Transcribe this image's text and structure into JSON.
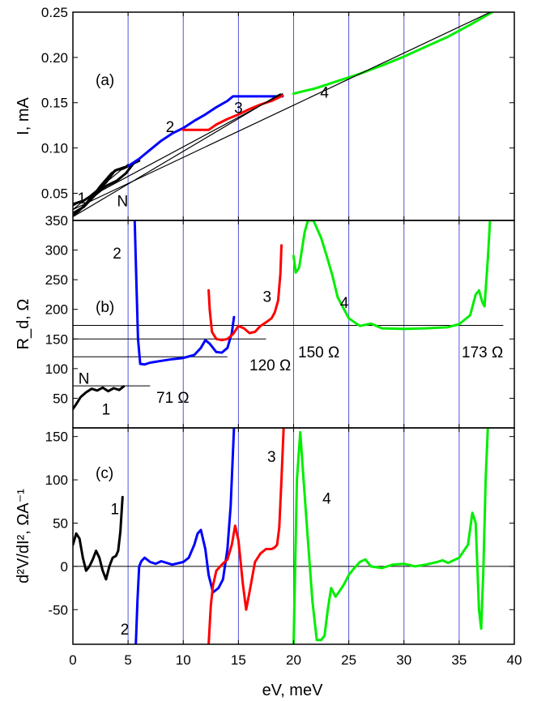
{
  "chart_data": {
    "type": "line",
    "xlabel": "eV, meV",
    "xlim": [
      0,
      40
    ],
    "xticks": [
      "0",
      "5",
      "10",
      "15",
      "20",
      "25",
      "30",
      "35",
      "40"
    ],
    "grid": "vertical blue lines at 5 meV steps",
    "panels": [
      {
        "id": "a",
        "panel_label": "(a)",
        "ylabel": "I, mA",
        "ylim": [
          0.02,
          0.25
        ],
        "yticks": [
          "0.05",
          "0.10",
          "0.15",
          "0.20",
          "0.25"
        ],
        "curve_labels": [
          {
            "text": "1",
            "x": 0.8,
            "y": 0.045
          },
          {
            "text": "N",
            "x": 4.5,
            "y": 0.042
          },
          {
            "text": "2",
            "x": 8.8,
            "y": 0.124
          },
          {
            "text": "3",
            "x": 15.0,
            "y": 0.145
          },
          {
            "text": "4",
            "x": 22.8,
            "y": 0.162
          }
        ],
        "series": [
          {
            "label": "N",
            "color": "#000000",
            "x": [
              0.0,
              0.5,
              1.0,
              2.0,
              3.0,
              3.8,
              4.5,
              5.0,
              5.5,
              4.8,
              4.0,
              3.0,
              2.0,
              1.0,
              0.0
            ],
            "y": [
              0.038,
              0.04,
              0.042,
              0.05,
              0.062,
              0.075,
              0.078,
              0.08,
              0.083,
              0.072,
              0.064,
              0.058,
              0.048,
              0.035,
              0.028
            ]
          },
          {
            "label": "1",
            "color": "#000000",
            "x": [
              0.0,
              0.5,
              1.0,
              1.5,
              2.0,
              2.5,
              3.0,
              3.5,
              4.0,
              4.5,
              5.0,
              5.5,
              6.0
            ],
            "y": [
              0.026,
              0.03,
              0.036,
              0.043,
              0.05,
              0.058,
              0.065,
              0.072,
              0.076,
              0.077,
              0.08,
              0.083,
              0.086
            ]
          },
          {
            "label": "2",
            "color": "#0000ff",
            "x": [
              5.0,
              6.0,
              7.0,
              8.0,
              9.0,
              10.0,
              11.0,
              12.0,
              13.0,
              14.0,
              14.5,
              17.0,
              19.0
            ],
            "y": [
              0.08,
              0.088,
              0.098,
              0.108,
              0.116,
              0.122,
              0.13,
              0.137,
              0.145,
              0.152,
              0.157,
              0.157,
              0.157
            ]
          },
          {
            "label": "3",
            "color": "#ff0000",
            "x": [
              10.0,
              12.3,
              13.0,
              14.0,
              15.0,
              16.0,
              17.0,
              18.0,
              18.7,
              19.0
            ],
            "y": [
              0.12,
              0.12,
              0.126,
              0.132,
              0.137,
              0.143,
              0.148,
              0.152,
              0.156,
              0.158
            ]
          },
          {
            "label": "4",
            "color": "#00ee00",
            "x": [
              20.0,
              21.0,
              22.0,
              24.0,
              26.0,
              28.0,
              30.0,
              32.0,
              34.0,
              36.0,
              38.0
            ],
            "y": [
              0.16,
              0.163,
              0.166,
              0.174,
              0.182,
              0.191,
              0.201,
              0.212,
              0.223,
              0.236,
              0.25
            ]
          },
          {
            "label": "71 Ω fit",
            "color": "#000000",
            "x": [
              0.0,
              5.0
            ],
            "y": [
              0.032,
              0.082
            ]
          },
          {
            "label": "120 Ω fit",
            "color": "#000000",
            "x": [
              0.0,
              18.8
            ],
            "y": [
              0.024,
              0.16
            ]
          },
          {
            "label": "150 Ω fit",
            "color": "#000000",
            "x": [
              0.0,
              19.0
            ],
            "y": [
              0.036,
              0.16
            ]
          },
          {
            "label": "173 Ω fit",
            "color": "#000000",
            "x": [
              0.0,
              38.0
            ],
            "y": [
              0.032,
              0.251
            ]
          }
        ]
      },
      {
        "id": "b",
        "panel_label": "(b)",
        "ylabel": "R_d, Ω",
        "ylim": [
          0,
          350
        ],
        "yticks": [
          "50",
          "100",
          "150",
          "200",
          "250",
          "300",
          "350"
        ],
        "reference_lines": [
          {
            "label": "71 Ω",
            "value": 71,
            "x_start": 0.0,
            "x_end": 7.0
          },
          {
            "label": "120 Ω",
            "value": 120,
            "x_start": 0.0,
            "x_end": 14.0
          },
          {
            "label": "150 Ω",
            "value": 150,
            "x_start": 0.0,
            "x_end": 17.5
          },
          {
            "label": "173 Ω",
            "value": 173,
            "x_start": 0.0,
            "x_end": 39.0
          }
        ],
        "curve_labels": [
          {
            "text": "N",
            "x": 1.0,
            "y": 84
          },
          {
            "text": "1",
            "x": 3.0,
            "y": 32
          },
          {
            "text": "2",
            "x": 4.0,
            "y": 295
          },
          {
            "text": "3",
            "x": 17.6,
            "y": 222
          },
          {
            "text": "4",
            "x": 24.6,
            "y": 212
          }
        ],
        "series": [
          {
            "label": "1",
            "color": "#000000",
            "x": [
              0.0,
              0.3,
              0.7,
              1.2,
              1.7,
              2.2,
              2.7,
              3.2,
              3.7,
              4.2,
              4.6
            ],
            "y": [
              32,
              40,
              52,
              60,
              66,
              63,
              68,
              62,
              67,
              64,
              70
            ]
          },
          {
            "label": "2",
            "color": "#0000ff",
            "x": [
              5.6,
              5.75,
              5.9,
              6.1,
              6.5,
              7.0,
              8.0,
              9.0,
              10.0,
              11.0,
              11.6,
              12.0,
              12.4,
              13.0,
              13.5,
              14.0,
              14.4,
              14.6
            ],
            "y": [
              350,
              250,
              150,
              108,
              107,
              110,
              113,
              116,
              118,
              123,
              135,
              148,
              142,
              128,
              127,
              135,
              160,
              187
            ]
          },
          {
            "label": "3",
            "color": "#ff0000",
            "x": [
              12.3,
              12.4,
              12.6,
              13.0,
              13.5,
              14.0,
              14.5,
              15.0,
              15.5,
              16.0,
              16.5,
              17.0,
              17.5,
              18.0,
              18.3,
              18.6,
              18.8,
              18.9
            ],
            "y": [
              232,
              200,
              162,
              150,
              148,
              150,
              158,
              172,
              168,
              160,
              162,
              172,
              178,
              185,
              195,
              215,
              260,
              308
            ]
          },
          {
            "label": "4",
            "color": "#00ee00",
            "x": [
              20.0,
              20.2,
              20.5,
              21.0,
              21.3,
              21.8,
              22.5,
              23.0,
              23.5,
              24.0,
              25.0,
              26.0,
              27.0,
              28.0,
              30.0,
              32.0,
              34.0,
              35.0,
              36.0,
              36.5,
              36.8,
              37.1,
              37.3,
              37.6,
              37.8
            ],
            "y": [
              290,
              262,
              270,
              330,
              350,
              350,
              320,
              290,
              258,
              220,
              185,
              172,
              176,
              168,
              167,
              168,
              170,
              175,
              190,
              225,
              232,
              212,
              205,
              285,
              350
            ]
          }
        ]
      },
      {
        "id": "c",
        "panel_label": "(c)",
        "ylabel": "d²V/dI², ΩA⁻¹",
        "ylim": [
          -90,
          160
        ],
        "yticks": [
          "-50",
          "0",
          "50",
          "100",
          "150"
        ],
        "curve_labels": [
          {
            "text": "1",
            "x": 3.8,
            "y": 67
          },
          {
            "text": "2",
            "x": 4.7,
            "y": -72
          },
          {
            "text": "3",
            "x": 18.0,
            "y": 127
          },
          {
            "text": "4",
            "x": 23.0,
            "y": 79
          }
        ],
        "series": [
          {
            "label": "1",
            "color": "#000000",
            "x": [
              0.0,
              0.3,
              0.6,
              0.9,
              1.2,
              1.5,
              1.8,
              2.1,
              2.4,
              2.7,
              3.0,
              3.3,
              3.6,
              3.9,
              4.1,
              4.3,
              4.5
            ],
            "y": [
              25,
              38,
              32,
              10,
              -5,
              0,
              8,
              18,
              10,
              -5,
              -15,
              0,
              10,
              12,
              18,
              40,
              80
            ]
          },
          {
            "label": "2",
            "color": "#0000ff",
            "x": [
              5.7,
              5.85,
              6.0,
              6.2,
              6.5,
              7.0,
              7.5,
              8.0,
              9.0,
              10.0,
              10.5,
              11.0,
              11.3,
              11.6,
              12.0,
              12.3,
              12.7,
              13.2,
              13.6,
              14.0,
              14.3,
              14.6
            ],
            "y": [
              -90,
              -40,
              0,
              6,
              10,
              5,
              3,
              6,
              2,
              5,
              10,
              25,
              38,
              42,
              20,
              -10,
              -30,
              -25,
              -15,
              20,
              70,
              160
            ]
          },
          {
            "label": "3",
            "color": "#ff0000",
            "x": [
              12.3,
              12.5,
              12.7,
              13.0,
              13.5,
              14.0,
              14.4,
              14.7,
              15.0,
              15.4,
              15.7,
              16.0,
              16.5,
              17.0,
              17.5,
              18.0,
              18.3,
              18.5,
              18.7,
              18.9,
              19.1
            ],
            "y": [
              -90,
              -45,
              -22,
              -5,
              2,
              8,
              25,
              47,
              30,
              -20,
              -50,
              -30,
              5,
              15,
              20,
              20,
              22,
              25,
              45,
              100,
              160
            ]
          },
          {
            "label": "4",
            "color": "#00ee00",
            "x": [
              20.0,
              20.3,
              20.6,
              20.9,
              21.3,
              21.7,
              22.1,
              22.5,
              22.8,
              23.1,
              23.4,
              23.8,
              24.2,
              24.6,
              25.0,
              25.5,
              26.0,
              26.5,
              27.0,
              28.0,
              29.0,
              30.0,
              31.0,
              32.0,
              33.0,
              33.5,
              34.0,
              35.0,
              35.8,
              36.2,
              36.5,
              36.8,
              37.0,
              37.2,
              37.4,
              37.6
            ],
            "y": [
              -90,
              100,
              155,
              100,
              30,
              -40,
              -85,
              -85,
              -80,
              -50,
              -25,
              -35,
              -28,
              -20,
              -10,
              -2,
              5,
              8,
              0,
              -2,
              2,
              3,
              0,
              2,
              5,
              7,
              4,
              10,
              25,
              62,
              50,
              -50,
              -72,
              0,
              100,
              160
            ]
          }
        ]
      }
    ]
  }
}
